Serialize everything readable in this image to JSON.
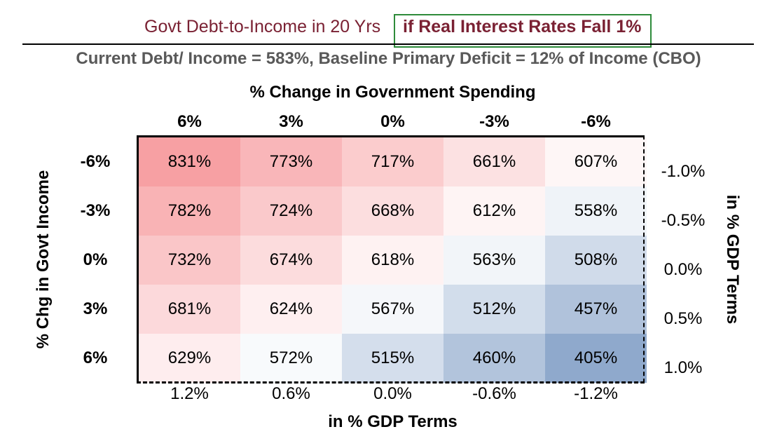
{
  "title": {
    "part1": "Govt Debt-to-Income in 20 Yrs",
    "part2": "if Real Interest Rates Fall 1%",
    "colors": {
      "title_text": "#7a2133",
      "highlight_box": "#2e8b3a"
    }
  },
  "subtitle": "Current Debt/ Income = 583%, Baseline Primary Deficit = 12% of Income (CBO)",
  "chart_data": {
    "type": "heatmap",
    "x_title": "% Change in Government Spending",
    "x_categories": [
      "6%",
      "3%",
      "0%",
      "-3%",
      "-6%"
    ],
    "x_secondary_title": "in % GDP Terms",
    "x_secondary_categories": [
      "1.2%",
      "0.6%",
      "0.0%",
      "-0.6%",
      "-1.2%"
    ],
    "y_title": "% Chg in Govt Income",
    "y_categories": [
      "-6%",
      "-3%",
      "0%",
      "3%",
      "6%"
    ],
    "y_secondary_title": "in % GDP Terms",
    "y_secondary_categories": [
      "-1.0%",
      "-0.5%",
      "0.0%",
      "0.5%",
      "1.0%"
    ],
    "values": [
      [
        831,
        773,
        717,
        661,
        607
      ],
      [
        782,
        724,
        668,
        612,
        558
      ],
      [
        732,
        674,
        618,
        563,
        508
      ],
      [
        681,
        624,
        567,
        512,
        457
      ],
      [
        629,
        572,
        515,
        460,
        405
      ]
    ],
    "value_suffix": "%",
    "color_scale": {
      "low": "#8fa9cc",
      "mid": "#ffffff",
      "high": "#f7a0a3",
      "mid_value": 583
    }
  }
}
